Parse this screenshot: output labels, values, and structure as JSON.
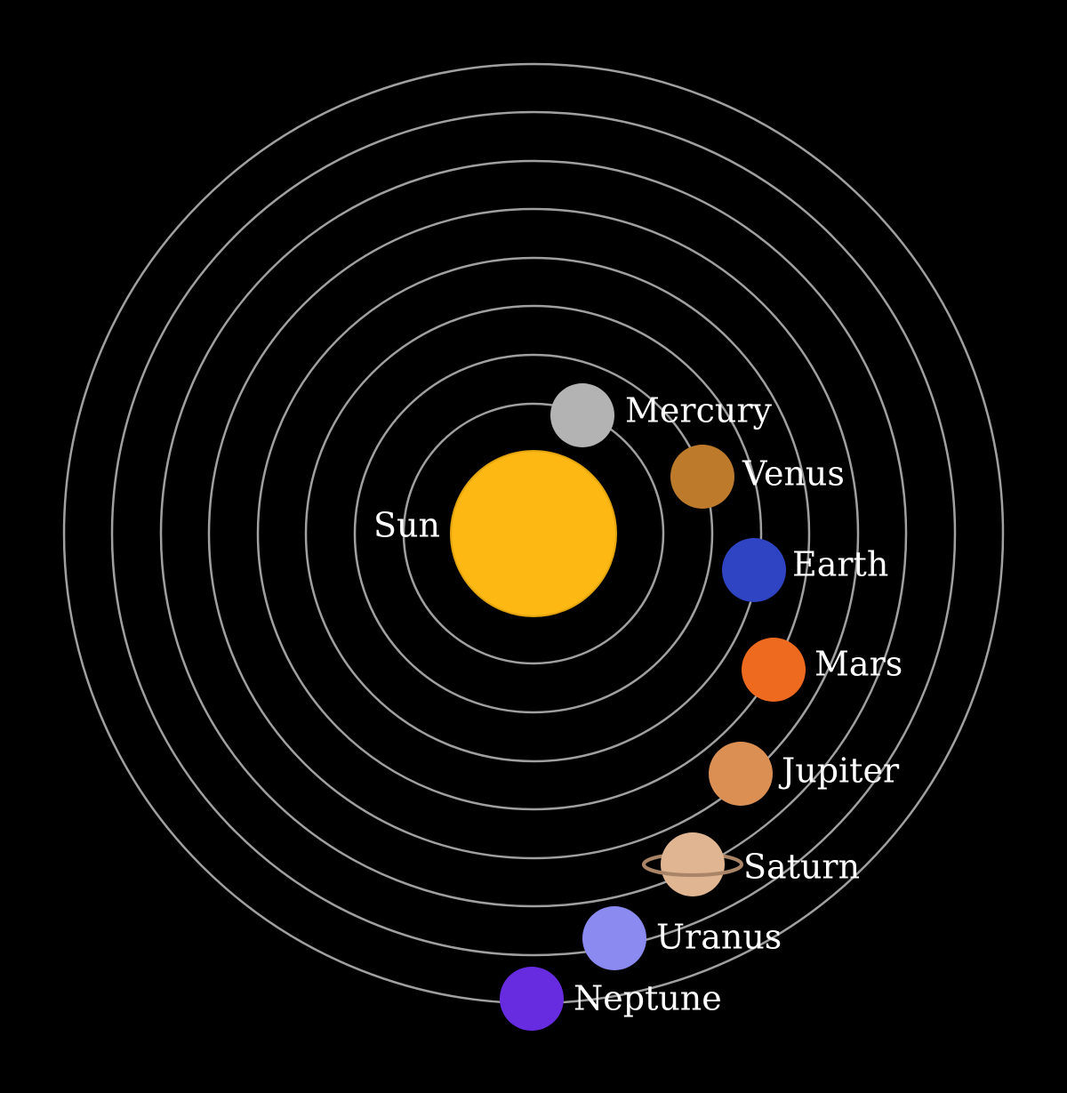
{
  "sun": {
    "label": "Sun",
    "color": "#FDB813"
  },
  "planets": [
    {
      "name": "Mercury",
      "color": "#B3B3B3"
    },
    {
      "name": "Venus",
      "color": "#BD7A2B"
    },
    {
      "name": "Earth",
      "color": "#2E44C2"
    },
    {
      "name": "Mars",
      "color": "#EE6A1F"
    },
    {
      "name": "Jupiter",
      "color": "#DB8F52"
    },
    {
      "name": "Saturn",
      "color": "#DFB592",
      "ring_color": "#A98466"
    },
    {
      "name": "Uranus",
      "color": "#8A8AF0"
    },
    {
      "name": "Neptune",
      "color": "#682CE0"
    }
  ],
  "orbit_color": "#A0A0A0"
}
